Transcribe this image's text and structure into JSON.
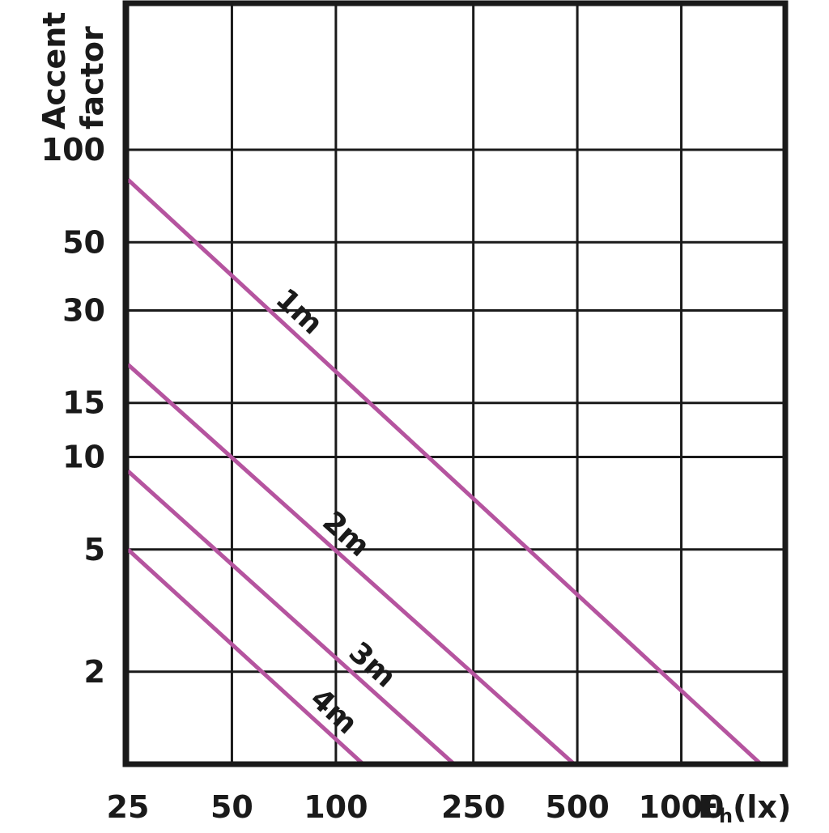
{
  "chart_data": {
    "type": "line",
    "title": "",
    "ylabel_lines": [
      "Accent",
      "factor"
    ],
    "xlabel_main": "E",
    "xlabel_sub": "h",
    "xlabel_unit": "(lx)",
    "x_scale": "log",
    "y_scale": "log",
    "grid": true,
    "legend": "inline labels on lines",
    "x_ticks": [
      25,
      50,
      100,
      250,
      500,
      1000
    ],
    "x_tick_labels": [
      "25",
      "50",
      "100",
      "250",
      "500",
      "1000"
    ],
    "y_ticks": [
      2,
      5,
      10,
      15,
      30,
      50,
      100
    ],
    "y_tick_labels": [
      "2",
      "5",
      "10",
      "15",
      "30",
      "50",
      "100"
    ],
    "xlim": [
      25,
      2000
    ],
    "ylim": [
      1,
      300
    ],
    "series": [
      {
        "name": "1m",
        "color": "#b5549f",
        "x": [
          25,
          1700
        ],
        "y": [
          80,
          1
        ]
      },
      {
        "name": "2m",
        "color": "#b5549f",
        "x": [
          25,
          490
        ],
        "y": [
          20,
          1
        ]
      },
      {
        "name": "3m",
        "color": "#b5549f",
        "x": [
          25,
          220
        ],
        "y": [
          9,
          1
        ]
      },
      {
        "name": "4m",
        "color": "#b5549f",
        "x": [
          25,
          120
        ],
        "y": [
          5,
          1
        ]
      }
    ]
  }
}
